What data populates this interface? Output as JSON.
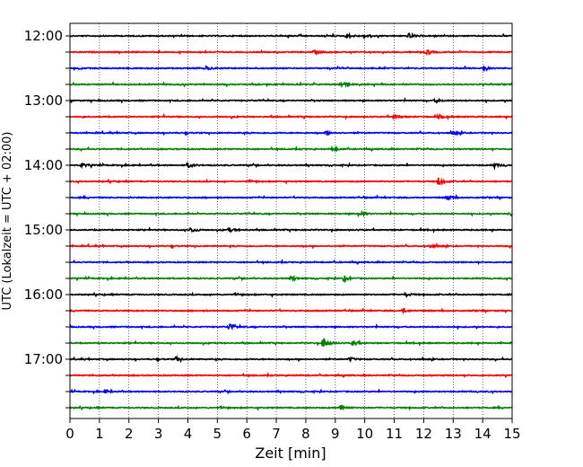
{
  "chart_data": {
    "type": "line",
    "title": "",
    "xlabel": "Zeit  [min]",
    "ylabel": "UTC (Lokalzeit = UTC + 02:00)",
    "xlim": [
      0,
      15
    ],
    "x_ticks": [
      "0",
      "1",
      "2",
      "3",
      "4",
      "5",
      "6",
      "7",
      "8",
      "9",
      "10",
      "11",
      "12",
      "13",
      "14",
      "15"
    ],
    "grid": "vertical dotted",
    "y_tick_labels": [
      "12:00",
      "13:00",
      "14:00",
      "15:00",
      "16:00",
      "17:00"
    ],
    "traces": [
      {
        "start": "12:00",
        "color": "#000000",
        "events": [
          {
            "x": 9.4,
            "amp": 0.25
          },
          {
            "x": 10.0,
            "amp": 0.2
          },
          {
            "x": 11.5,
            "amp": 0.3
          }
        ]
      },
      {
        "start": "12:15",
        "color": "#ff0000",
        "events": [
          {
            "x": 8.3,
            "amp": 0.25
          },
          {
            "x": 12.1,
            "amp": 0.3
          }
        ]
      },
      {
        "start": "12:30",
        "color": "#0000ff",
        "events": [
          {
            "x": 4.6,
            "amp": 0.2
          },
          {
            "x": 14.0,
            "amp": 0.2
          }
        ]
      },
      {
        "start": "12:45",
        "color": "#008000",
        "events": [
          {
            "x": 9.2,
            "amp": 0.4
          }
        ]
      },
      {
        "start": "13:00",
        "color": "#000000",
        "events": [
          {
            "x": 12.4,
            "amp": 0.2
          }
        ]
      },
      {
        "start": "13:15",
        "color": "#ff0000",
        "events": [
          {
            "x": 11.0,
            "amp": 0.25
          },
          {
            "x": 12.5,
            "amp": 0.25
          }
        ]
      },
      {
        "start": "13:30",
        "color": "#0000ff",
        "events": [
          {
            "x": 8.7,
            "amp": 0.2
          },
          {
            "x": 13.0,
            "amp": 0.2
          }
        ]
      },
      {
        "start": "13:45",
        "color": "#008000",
        "events": [
          {
            "x": 8.9,
            "amp": 0.25
          }
        ]
      },
      {
        "start": "14:00",
        "color": "#000000",
        "events": [
          {
            "x": 0.4,
            "amp": 0.25
          },
          {
            "x": 4.0,
            "amp": 0.3
          },
          {
            "x": 14.4,
            "amp": 0.25
          }
        ]
      },
      {
        "start": "14:15",
        "color": "#ff0000",
        "events": [
          {
            "x": 12.5,
            "amp": 0.45
          }
        ]
      },
      {
        "start": "14:30",
        "color": "#0000ff",
        "events": [
          {
            "x": 12.8,
            "amp": 0.3
          }
        ]
      },
      {
        "start": "14:45",
        "color": "#008000",
        "events": [
          {
            "x": 9.8,
            "amp": 0.3
          },
          {
            "x": 14.9,
            "amp": 0.25
          }
        ]
      },
      {
        "start": "15:00",
        "color": "#000000",
        "events": [
          {
            "x": 4.1,
            "amp": 0.3
          },
          {
            "x": 5.4,
            "amp": 0.25
          }
        ]
      },
      {
        "start": "15:15",
        "color": "#ff0000",
        "events": [
          {
            "x": 12.2,
            "amp": 0.2
          }
        ]
      },
      {
        "start": "15:30",
        "color": "#0000ff",
        "events": []
      },
      {
        "start": "15:45",
        "color": "#008000",
        "events": [
          {
            "x": 7.5,
            "amp": 0.25
          },
          {
            "x": 9.3,
            "amp": 0.35
          }
        ]
      },
      {
        "start": "16:00",
        "color": "#000000",
        "events": [
          {
            "x": 11.4,
            "amp": 0.2
          }
        ]
      },
      {
        "start": "16:15",
        "color": "#ff0000",
        "events": [
          {
            "x": 11.3,
            "amp": 0.25
          }
        ]
      },
      {
        "start": "16:30",
        "color": "#0000ff",
        "events": [
          {
            "x": 5.4,
            "amp": 0.45
          }
        ]
      },
      {
        "start": "16:45",
        "color": "#008000",
        "events": [
          {
            "x": 8.6,
            "amp": 0.7
          },
          {
            "x": 9.6,
            "amp": 0.3
          }
        ]
      },
      {
        "start": "17:00",
        "color": "#000000",
        "events": [
          {
            "x": 3.6,
            "amp": 0.25
          },
          {
            "x": 9.5,
            "amp": 0.2
          }
        ]
      },
      {
        "start": "17:15",
        "color": "#ff0000",
        "events": []
      },
      {
        "start": "17:30",
        "color": "#0000ff",
        "events": [
          {
            "x": 1.2,
            "amp": 0.2
          }
        ]
      },
      {
        "start": "17:45",
        "color": "#008000",
        "events": [
          {
            "x": 9.2,
            "amp": 0.35
          }
        ]
      }
    ]
  }
}
